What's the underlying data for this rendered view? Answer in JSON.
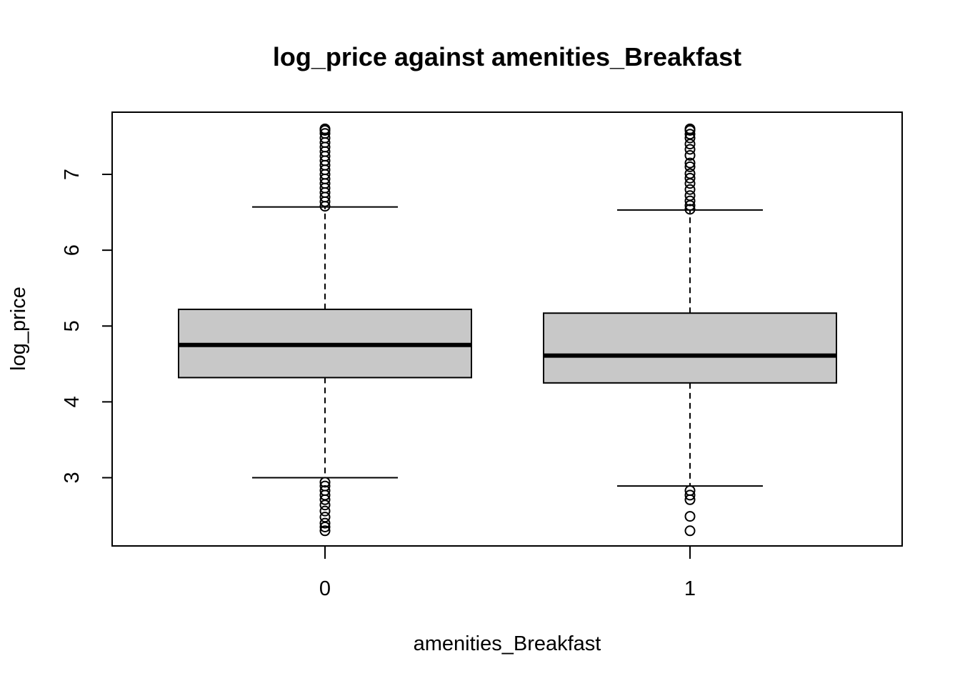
{
  "chart_data": {
    "type": "box",
    "title": "log_price against amenities_Breakfast",
    "xlabel": "amenities_Breakfast",
    "ylabel": "log_price",
    "categories": [
      "0",
      "1"
    ],
    "ylim": [
      2.1,
      7.82
    ],
    "yticks": [
      3,
      4,
      5,
      6,
      7
    ],
    "grid": false,
    "box_fill": "#c8c8c8",
    "boxes": [
      {
        "category": "0",
        "whisker_low": 3.0,
        "q1": 4.32,
        "median": 4.75,
        "q3": 5.22,
        "whisker_high": 6.57,
        "outliers": [
          2.3,
          2.35,
          2.4,
          2.48,
          2.56,
          2.64,
          2.71,
          2.77,
          2.83,
          2.89,
          2.94,
          6.58,
          6.64,
          6.7,
          6.76,
          6.82,
          6.88,
          6.94,
          7.0,
          7.06,
          7.12,
          7.18,
          7.24,
          7.3,
          7.36,
          7.42,
          7.48,
          7.54,
          7.58,
          7.6
        ]
      },
      {
        "category": "1",
        "whisker_low": 2.89,
        "q1": 4.25,
        "median": 4.61,
        "q3": 5.17,
        "whisker_high": 6.53,
        "outliers": [
          2.3,
          2.49,
          2.71,
          2.77,
          2.83,
          6.54,
          6.59,
          6.65,
          6.72,
          6.8,
          6.88,
          6.95,
          7.01,
          7.1,
          7.15,
          7.25,
          7.33,
          7.4,
          7.48,
          7.53,
          7.58,
          7.6
        ]
      }
    ]
  }
}
